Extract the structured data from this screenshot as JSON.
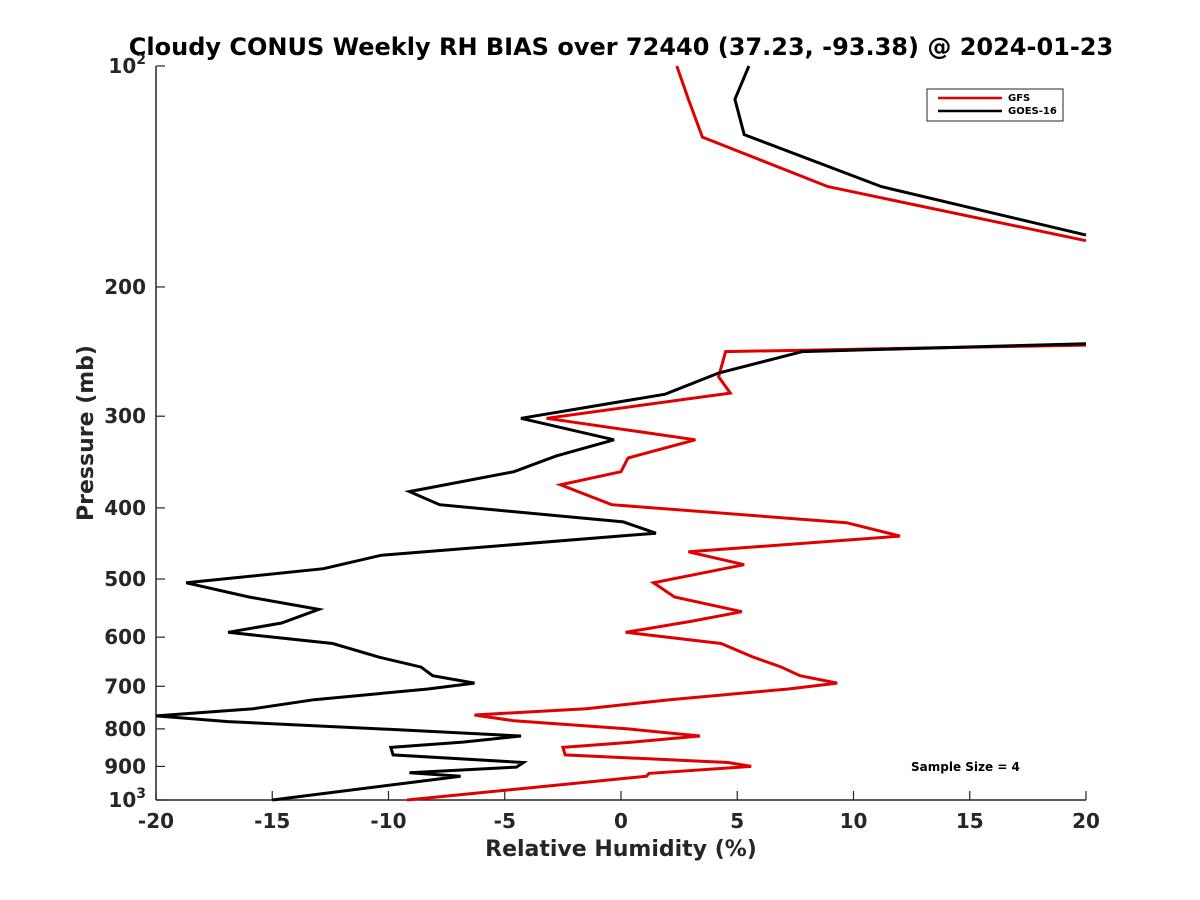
{
  "chart_data": {
    "type": "line",
    "title": "Cloudy CONUS Weekly RH BIAS over 72440 (37.23, -93.38) @ 2024-01-23",
    "xlabel": "Relative Humidity (%)",
    "ylabel": "Pressure (mb)",
    "xlim": [
      -20,
      20
    ],
    "ylim": [
      100,
      1000
    ],
    "y_scale": "log",
    "y_reversed": true,
    "grid": false,
    "legend_position": "top-right",
    "x_ticks": [
      "-20",
      "-15",
      "-10",
      "-5",
      "0",
      "5",
      "10",
      "15",
      "20"
    ],
    "y_ticks": [
      {
        "value": 100,
        "base": "10",
        "exp": "2"
      },
      {
        "value": 200,
        "label": "200"
      },
      {
        "value": 300,
        "label": "300"
      },
      {
        "value": 400,
        "label": "400"
      },
      {
        "value": 500,
        "label": "500"
      },
      {
        "value": 600,
        "label": "600"
      },
      {
        "value": 700,
        "label": "700"
      },
      {
        "value": 800,
        "label": "800"
      },
      {
        "value": 900,
        "label": "900"
      },
      {
        "value": 1000,
        "base": "10",
        "exp": "3"
      }
    ],
    "annotation": "Sample Size = 4",
    "series": [
      {
        "name": "GFS",
        "color": "#e00000",
        "segments": [
          [
            [
              2.4,
              100
            ],
            [
              2.9,
              111
            ],
            [
              3.5,
              125
            ],
            [
              8.9,
              146
            ],
            [
              20,
              173
            ]
          ],
          [
            [
              20,
              240
            ],
            [
              4.5,
              245
            ],
            [
              4.2,
              265
            ],
            [
              4.7,
              279
            ],
            [
              -3.2,
              302
            ],
            [
              3.2,
              323
            ],
            [
              0.3,
              342
            ],
            [
              0,
              357
            ],
            [
              -2.6,
              372
            ],
            [
              -0.4,
              396
            ],
            [
              9.7,
              419
            ],
            [
              12,
              437
            ],
            [
              2.9,
              459
            ],
            [
              5.3,
              478
            ],
            [
              1.4,
              506
            ],
            [
              2.3,
              529
            ],
            [
              5.2,
              554
            ],
            [
              3.0,
              571
            ],
            [
              0.2,
              591
            ],
            [
              4.3,
              612
            ],
            [
              5.7,
              639
            ],
            [
              6.9,
              659
            ],
            [
              7.7,
              677
            ],
            [
              9.3,
              693
            ],
            [
              7.2,
              706
            ],
            [
              2.1,
              730
            ],
            [
              -1.5,
              751
            ],
            [
              -6.3,
              766
            ],
            [
              -4.6,
              780
            ],
            [
              0.3,
              800
            ],
            [
              3.4,
              818
            ],
            [
              0.5,
              834
            ],
            [
              -2.5,
              848
            ],
            [
              -2.4,
              868
            ],
            [
              4.6,
              889
            ],
            [
              5.6,
              900
            ],
            [
              1.2,
              920
            ],
            [
              1.1,
              928
            ],
            [
              -9.2,
              1000
            ]
          ]
        ]
      },
      {
        "name": "GOES-16",
        "color": "#000000",
        "segments": [
          [
            [
              5.5,
              100
            ],
            [
              4.9,
              111
            ],
            [
              5.3,
              124
            ],
            [
              11.2,
              146
            ],
            [
              20,
              170
            ]
          ],
          [
            [
              20,
              239
            ],
            [
              7.8,
              245
            ],
            [
              4.2,
              262
            ],
            [
              1.9,
              280
            ],
            [
              -4.3,
              302
            ],
            [
              -0.3,
              323
            ],
            [
              -2.8,
              340
            ],
            [
              -4.6,
              357
            ],
            [
              -9.1,
              380
            ],
            [
              -7.8,
              396
            ],
            [
              0.1,
              418
            ],
            [
              1.5,
              433
            ],
            [
              -10.3,
              464
            ],
            [
              -12.8,
              484
            ],
            [
              -18.7,
              506
            ],
            [
              -16.0,
              529
            ],
            [
              -13.0,
              550
            ],
            [
              -14.6,
              574
            ],
            [
              -16.9,
              591
            ],
            [
              -12.4,
              612
            ],
            [
              -10.4,
              639
            ],
            [
              -8.6,
              659
            ],
            [
              -8.1,
              677
            ],
            [
              -6.3,
              693
            ],
            [
              -8.3,
              706
            ],
            [
              -13.2,
              730
            ],
            [
              -15.8,
              751
            ],
            [
              -20,
              768
            ],
            [
              -16.9,
              782
            ],
            [
              -10.0,
              801
            ],
            [
              -4.3,
              818
            ],
            [
              -6.8,
              834
            ],
            [
              -9.9,
              848
            ],
            [
              -9.8,
              868
            ],
            [
              -4.2,
              889
            ],
            [
              -4.5,
              902
            ],
            [
              -9.1,
              918
            ],
            [
              -6.9,
              928
            ],
            [
              -15,
              1000
            ]
          ]
        ]
      }
    ]
  }
}
